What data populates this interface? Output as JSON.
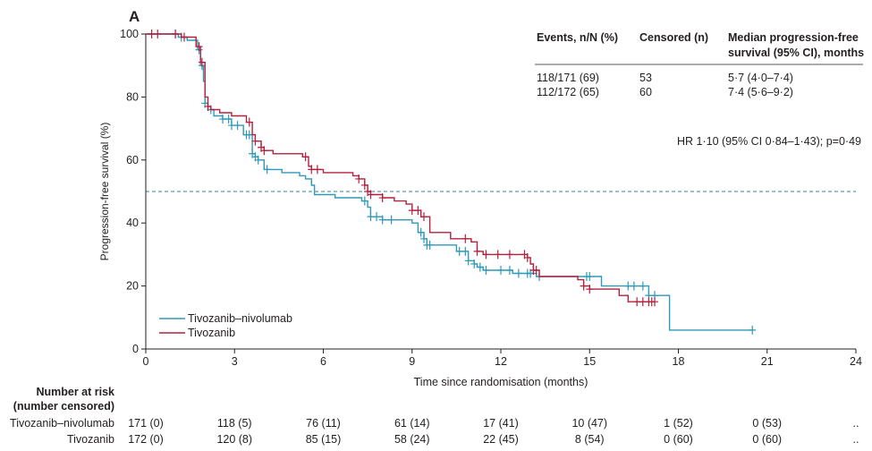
{
  "chart_data": {
    "type": "line",
    "panel_label": "A",
    "title": "",
    "xlabel": "Time since randomisation (months)",
    "ylabel": "Progression-free survival (%)",
    "xlim": [
      0,
      24
    ],
    "ylim": [
      0,
      100
    ],
    "xticks": [
      0,
      3,
      6,
      9,
      12,
      15,
      18,
      21,
      24
    ],
    "yticks": [
      0,
      20,
      40,
      60,
      80,
      100
    ],
    "reference_line": {
      "y": 50,
      "style": "dashed"
    },
    "colors": {
      "Tivozanib–nivolumab": "#2e9ab8",
      "Tivozanib": "#b3213f",
      "reference": "#3a7ea8",
      "axis": "#231f20"
    },
    "legend": {
      "position": "bottom-left",
      "entries": [
        "Tivozanib–nivolumab",
        "Tivozanib"
      ]
    },
    "series": [
      {
        "name": "Tivozanib–nivolumab",
        "x": [
          0,
          0.9,
          1.1,
          1.4,
          1.75,
          1.85,
          1.95,
          2.0,
          2.1,
          2.3,
          2.6,
          2.9,
          3.3,
          3.6,
          3.7,
          3.8,
          4.0,
          4.2,
          4.6,
          5.2,
          5.4,
          5.6,
          5.7,
          6.1,
          6.4,
          7.0,
          7.3,
          7.5,
          7.6,
          8.0,
          8.4,
          8.8,
          9.0,
          9.2,
          9.4,
          9.5,
          9.7,
          10.0,
          10.5,
          10.9,
          11.1,
          11.2,
          11.4,
          11.6,
          12.4,
          12.9,
          13.2,
          14.9,
          15.2,
          15.4,
          17.0,
          17.7,
          18.5,
          20.5
        ],
        "y": [
          100,
          100,
          99,
          98,
          95,
          90,
          85,
          78,
          76,
          74,
          73,
          71,
          68,
          62,
          61,
          60,
          57,
          57,
          56,
          55,
          54,
          52,
          49,
          49,
          48,
          48,
          47,
          45,
          42,
          41,
          41,
          41,
          40,
          37,
          35,
          33,
          33,
          33,
          31,
          28,
          27,
          26,
          25,
          25,
          24,
          24,
          23,
          23,
          23,
          20,
          17,
          6,
          6,
          6
        ],
        "censored_x": [
          1.0,
          1.2,
          1.8,
          1.9,
          2.0,
          2.2,
          2.6,
          2.8,
          2.9,
          3.1,
          3.4,
          3.5,
          3.6,
          3.7,
          3.8,
          4.1,
          7.4,
          7.6,
          7.8,
          8.0,
          8.3,
          9.3,
          9.4,
          9.5,
          9.6,
          10.6,
          10.8,
          10.9,
          11.1,
          11.3,
          11.5,
          12.0,
          12.3,
          12.6,
          12.9,
          13.0,
          13.3,
          14.9,
          15.0,
          16.3,
          16.5,
          16.8,
          17.0,
          17.2,
          20.5
        ]
      },
      {
        "name": "Tivozanib",
        "x": [
          0,
          1.0,
          1.2,
          1.7,
          1.85,
          2.0,
          2.1,
          2.2,
          2.5,
          2.9,
          3.4,
          3.6,
          3.7,
          3.9,
          4.0,
          4.3,
          5.0,
          5.3,
          5.5,
          5.6,
          6.0,
          6.6,
          7.0,
          7.2,
          7.4,
          7.5,
          7.6,
          8.0,
          8.4,
          8.8,
          9.0,
          9.3,
          9.6,
          10.3,
          10.8,
          11.0,
          11.2,
          11.4,
          11.6,
          12.5,
          12.9,
          13.0,
          13.1,
          13.3,
          13.6,
          14.0,
          14.6,
          14.8,
          15.0,
          15.7,
          16.0,
          16.3,
          17.2
        ],
        "y": [
          100,
          100,
          99,
          96,
          91,
          80,
          77,
          76,
          75,
          74,
          72,
          68,
          66,
          64,
          63,
          62,
          62,
          61,
          58,
          57,
          56,
          56,
          55,
          54,
          52,
          50,
          49,
          48,
          47,
          46,
          44,
          42,
          37,
          35,
          35,
          34,
          31,
          30,
          30,
          30,
          29,
          27,
          25,
          23,
          23,
          23,
          22,
          20,
          19,
          19,
          17,
          15,
          15
        ],
        "censored_x": [
          0.2,
          0.4,
          1.0,
          1.3,
          1.8,
          1.9,
          2.1,
          3.5,
          3.7,
          3.9,
          4.0,
          5.4,
          5.6,
          5.8,
          7.2,
          7.4,
          7.5,
          7.6,
          8.0,
          9.0,
          9.2,
          9.4,
          10.8,
          11.2,
          11.5,
          11.9,
          12.3,
          12.8,
          12.9,
          13.1,
          13.2,
          14.8,
          15.0,
          16.6,
          16.8,
          17.0,
          17.1,
          17.2
        ]
      }
    ],
    "summary_table": {
      "headers": [
        "Events, n/N (%)",
        "Censored (n)",
        "Median progression-free survival (95% CI), months"
      ],
      "header_lines": [
        "Median progression-free",
        "survival (95% CI), months"
      ],
      "rows": [
        [
          "118/171 (69)",
          "53",
          "5·7 (4·0–7·4)"
        ],
        [
          "112/172 (65)",
          "60",
          "7·4 (5·6–9·2)"
        ]
      ]
    },
    "hazard_ratio_text": "HR 1·10 (95% CI 0·84–1·43); p=0·49",
    "risk_table": {
      "title_lines": [
        "Number at risk",
        "(number censored)"
      ],
      "rows": [
        {
          "label": "Tivozanib–nivolumab",
          "values": [
            "171 (0)",
            "118 (5)",
            "76 (11)",
            "61 (14)",
            "17 (41)",
            "10 (47)",
            "1 (52)",
            "0 (53)",
            ".."
          ]
        },
        {
          "label": "Tivozanib",
          "values": [
            "172 (0)",
            "120 (8)",
            "85 (15)",
            "58 (24)",
            "22 (45)",
            "8 (54)",
            "0 (60)",
            "0 (60)",
            ".."
          ]
        }
      ]
    }
  }
}
